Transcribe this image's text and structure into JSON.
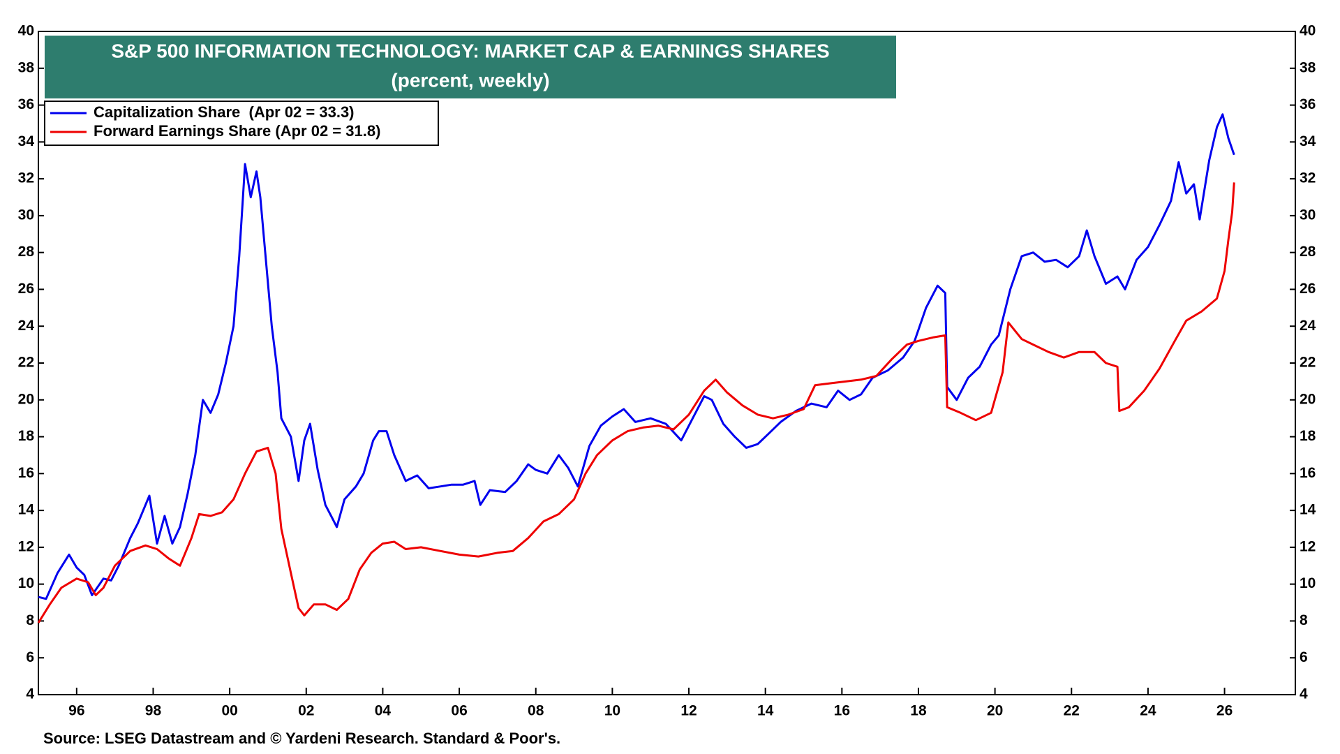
{
  "chart_data": {
    "type": "line",
    "title": "S&P 500 INFORMATION TECHNOLOGY: MARKET CAP & EARNINGS SHARES",
    "subtitle": "(percent, weekly)",
    "source": "Source: LSEG Datastream and © Yardeni Research. Standard & Poor's.",
    "xlim": [
      1995,
      2027.85
    ],
    "ylim": [
      4,
      40
    ],
    "y2lim": [
      4,
      40
    ],
    "xticks": [
      {
        "value": 1996,
        "label": "96"
      },
      {
        "value": 1998,
        "label": "98"
      },
      {
        "value": 2000,
        "label": "00"
      },
      {
        "value": 2002,
        "label": "02"
      },
      {
        "value": 2004,
        "label": "04"
      },
      {
        "value": 2006,
        "label": "06"
      },
      {
        "value": 2008,
        "label": "08"
      },
      {
        "value": 2010,
        "label": "10"
      },
      {
        "value": 2012,
        "label": "12"
      },
      {
        "value": 2014,
        "label": "14"
      },
      {
        "value": 2016,
        "label": "16"
      },
      {
        "value": 2018,
        "label": "18"
      },
      {
        "value": 2020,
        "label": "20"
      },
      {
        "value": 2022,
        "label": "22"
      },
      {
        "value": 2024,
        "label": "24"
      },
      {
        "value": 2026,
        "label": "26"
      }
    ],
    "yticks": [
      4,
      6,
      8,
      10,
      12,
      14,
      16,
      18,
      20,
      22,
      24,
      26,
      28,
      30,
      32,
      34,
      36,
      38,
      40
    ],
    "y2ticks": [
      4,
      6,
      8,
      10,
      12,
      14,
      16,
      18,
      20,
      22,
      24,
      26,
      28,
      30,
      32,
      34,
      36,
      38,
      40
    ],
    "legend": "upper left",
    "series": [
      {
        "name": "Capitalization Share  (Apr 02 = 33.3)",
        "color": "#0000ee",
        "x": [
          1995.0,
          1995.2,
          1995.5,
          1995.8,
          1996.0,
          1996.2,
          1996.4,
          1996.7,
          1996.9,
          1997.1,
          1997.4,
          1997.6,
          1997.9,
          1998.1,
          1998.3,
          1998.5,
          1998.7,
          1998.9,
          1999.1,
          1999.3,
          1999.5,
          1999.7,
          1999.9,
          2000.1,
          2000.25,
          2000.4,
          2000.55,
          2000.7,
          2000.8,
          2000.95,
          2001.1,
          2001.25,
          2001.35,
          2001.6,
          2001.8,
          2001.95,
          2002.1,
          2002.3,
          2002.5,
          2002.7,
          2002.8,
          2003.0,
          2003.3,
          2003.5,
          2003.75,
          2003.9,
          2004.1,
          2004.3,
          2004.6,
          2004.9,
          2005.2,
          2005.5,
          2005.8,
          2006.1,
          2006.4,
          2006.55,
          2006.8,
          2007.2,
          2007.5,
          2007.8,
          2008.0,
          2008.3,
          2008.6,
          2008.85,
          2009.1,
          2009.4,
          2009.7,
          2010.0,
          2010.3,
          2010.6,
          2011.0,
          2011.4,
          2011.8,
          2012.1,
          2012.4,
          2012.6,
          2012.9,
          2013.2,
          2013.5,
          2013.8,
          2014.1,
          2014.4,
          2014.8,
          2015.2,
          2015.6,
          2015.9,
          2016.2,
          2016.5,
          2016.8,
          2017.2,
          2017.6,
          2017.9,
          2018.2,
          2018.5,
          2018.7,
          2018.75,
          2019.0,
          2019.3,
          2019.6,
          2019.9,
          2020.1,
          2020.4,
          2020.7,
          2021.0,
          2021.3,
          2021.6,
          2021.9,
          2022.2,
          2022.4,
          2022.6,
          2022.9,
          2023.2,
          2023.4,
          2023.7,
          2024.0,
          2024.3,
          2024.6,
          2024.8,
          2025.0,
          2025.2,
          2025.35,
          2025.6,
          2025.8,
          2025.95,
          2026.1,
          2026.25
        ],
        "values": [
          9.3,
          9.2,
          10.6,
          11.6,
          10.9,
          10.5,
          9.4,
          10.3,
          10.2,
          11.0,
          12.5,
          13.3,
          14.8,
          12.2,
          13.7,
          12.2,
          13.1,
          14.9,
          17.0,
          20.0,
          19.3,
          20.3,
          22.0,
          24.0,
          27.8,
          32.8,
          31.0,
          32.4,
          31.0,
          27.5,
          24.0,
          21.5,
          19.0,
          18.0,
          15.6,
          17.8,
          18.7,
          16.2,
          14.3,
          13.5,
          13.1,
          14.6,
          15.3,
          16.0,
          17.8,
          18.3,
          18.3,
          17.0,
          15.6,
          15.9,
          15.2,
          15.3,
          15.4,
          15.4,
          15.6,
          14.3,
          15.1,
          15.0,
          15.6,
          16.5,
          16.2,
          16.0,
          17.0,
          16.3,
          15.3,
          17.5,
          18.6,
          19.1,
          19.5,
          18.8,
          19.0,
          18.7,
          17.8,
          19.0,
          20.2,
          20.0,
          18.7,
          18.0,
          17.4,
          17.6,
          18.2,
          18.8,
          19.4,
          19.8,
          19.6,
          20.5,
          20.0,
          20.3,
          21.2,
          21.6,
          22.3,
          23.2,
          25.0,
          26.2,
          25.8,
          20.7,
          20.0,
          21.2,
          21.8,
          23.0,
          23.5,
          26.0,
          27.8,
          28.0,
          27.5,
          27.6,
          27.2,
          27.8,
          29.2,
          27.8,
          26.3,
          26.7,
          26.0,
          27.6,
          28.3,
          29.5,
          30.8,
          32.9,
          31.2,
          31.7,
          29.8,
          33.0,
          34.8,
          35.5,
          34.2,
          33.3
        ]
      },
      {
        "name": "Forward Earnings Share (Apr 02 = 31.8)",
        "color": "#ee0000",
        "x": [
          1995.0,
          1995.3,
          1995.6,
          1996.0,
          1996.3,
          1996.5,
          1996.7,
          1997.0,
          1997.4,
          1997.8,
          1998.1,
          1998.4,
          1998.7,
          1999.0,
          1999.2,
          1999.5,
          1999.8,
          2000.1,
          2000.4,
          2000.7,
          2001.0,
          2001.2,
          2001.35,
          2001.6,
          2001.8,
          2001.95,
          2002.2,
          2002.5,
          2002.8,
          2003.1,
          2003.4,
          2003.7,
          2004.0,
          2004.3,
          2004.6,
          2005.0,
          2005.5,
          2006.0,
          2006.5,
          2007.0,
          2007.4,
          2007.8,
          2008.2,
          2008.6,
          2009.0,
          2009.3,
          2009.6,
          2010.0,
          2010.4,
          2010.8,
          2011.2,
          2011.6,
          2012.0,
          2012.4,
          2012.7,
          2013.0,
          2013.4,
          2013.8,
          2014.2,
          2014.6,
          2015.0,
          2015.3,
          2015.7,
          2016.1,
          2016.5,
          2016.9,
          2017.3,
          2017.7,
          2018.0,
          2018.4,
          2018.7,
          2018.75,
          2019.1,
          2019.5,
          2019.9,
          2020.2,
          2020.35,
          2020.7,
          2021.0,
          2021.4,
          2021.8,
          2022.2,
          2022.6,
          2022.9,
          2023.2,
          2023.25,
          2023.5,
          2023.9,
          2024.3,
          2024.7,
          2025.0,
          2025.4,
          2025.8,
          2026.0,
          2026.1,
          2026.2,
          2026.25
        ],
        "values": [
          7.9,
          8.9,
          9.8,
          10.3,
          10.1,
          9.4,
          9.8,
          11.0,
          11.8,
          12.1,
          11.9,
          11.4,
          11.0,
          12.5,
          13.8,
          13.7,
          13.9,
          14.6,
          16.0,
          17.2,
          17.4,
          16.0,
          13.0,
          10.6,
          8.7,
          8.3,
          8.9,
          8.9,
          8.6,
          9.2,
          10.8,
          11.7,
          12.2,
          12.3,
          11.9,
          12.0,
          11.8,
          11.6,
          11.5,
          11.7,
          11.8,
          12.5,
          13.4,
          13.8,
          14.6,
          16.0,
          17.0,
          17.8,
          18.3,
          18.5,
          18.6,
          18.4,
          19.2,
          20.5,
          21.1,
          20.4,
          19.7,
          19.2,
          19.0,
          19.2,
          19.5,
          20.8,
          20.9,
          21.0,
          21.1,
          21.3,
          22.2,
          23.0,
          23.2,
          23.4,
          23.5,
          19.6,
          19.3,
          18.9,
          19.3,
          21.5,
          24.2,
          23.3,
          23.0,
          22.6,
          22.3,
          22.6,
          22.6,
          22.0,
          21.8,
          19.4,
          19.6,
          20.5,
          21.7,
          23.2,
          24.3,
          24.8,
          25.5,
          27.0,
          28.7,
          30.2,
          31.8
        ]
      }
    ]
  }
}
